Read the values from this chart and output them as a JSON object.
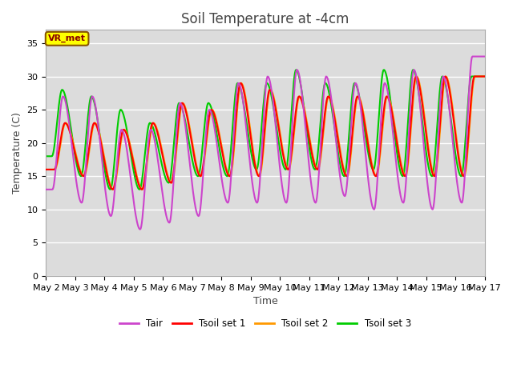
{
  "title": "Soil Temperature at -4cm",
  "xlabel": "Time",
  "ylabel": "Temperature (C)",
  "ylim": [
    0,
    37
  ],
  "yticks": [
    0,
    5,
    10,
    15,
    20,
    25,
    30,
    35
  ],
  "plot_bg": "#dcdcdc",
  "fig_bg": "#ffffff",
  "colors": {
    "Tair": "#cc44cc",
    "Tsoil1": "#ff0000",
    "Tsoil2": "#ff9900",
    "Tsoil3": "#00cc00"
  },
  "legend_labels": [
    "Tair",
    "Tsoil set 1",
    "Tsoil set 2",
    "Tsoil set 3"
  ],
  "annotation_text": "VR_met",
  "annotation_box_color": "#ffff00",
  "annotation_text_color": "#880000",
  "annotation_edge_color": "#885500",
  "title_fontsize": 12,
  "axis_label_fontsize": 9,
  "tick_fontsize": 8,
  "linewidth": 1.5,
  "n_days": 15,
  "pts_per_day": 48,
  "tair_peaks": [
    13,
    27,
    11,
    27,
    9,
    22,
    7,
    22,
    8,
    26,
    9,
    25,
    11,
    29,
    11,
    30,
    11,
    31,
    11,
    30,
    12,
    29,
    10,
    29,
    11,
    31,
    10,
    30,
    11,
    33
  ],
  "tsoil1_peaks": [
    16,
    23,
    15,
    23,
    13,
    22,
    13,
    23,
    14,
    26,
    15,
    25,
    15,
    29,
    15,
    28,
    16,
    27,
    16,
    27,
    15,
    27,
    15,
    27,
    15,
    30,
    15,
    30,
    15,
    30
  ],
  "tsoil2_peaks": [
    16,
    23,
    15,
    23,
    13,
    22,
    13,
    23,
    14,
    26,
    15,
    25,
    15,
    29,
    15,
    28,
    16,
    27,
    16,
    27,
    15,
    27,
    15,
    27,
    15,
    30,
    15,
    30,
    15,
    30
  ],
  "tsoil3_peaks": [
    18,
    28,
    15,
    27,
    13,
    25,
    13,
    23,
    14,
    26,
    15,
    26,
    15,
    29,
    16,
    29,
    16,
    31,
    16,
    29,
    15,
    29,
    16,
    31,
    15,
    31,
    15,
    30,
    15,
    30
  ]
}
